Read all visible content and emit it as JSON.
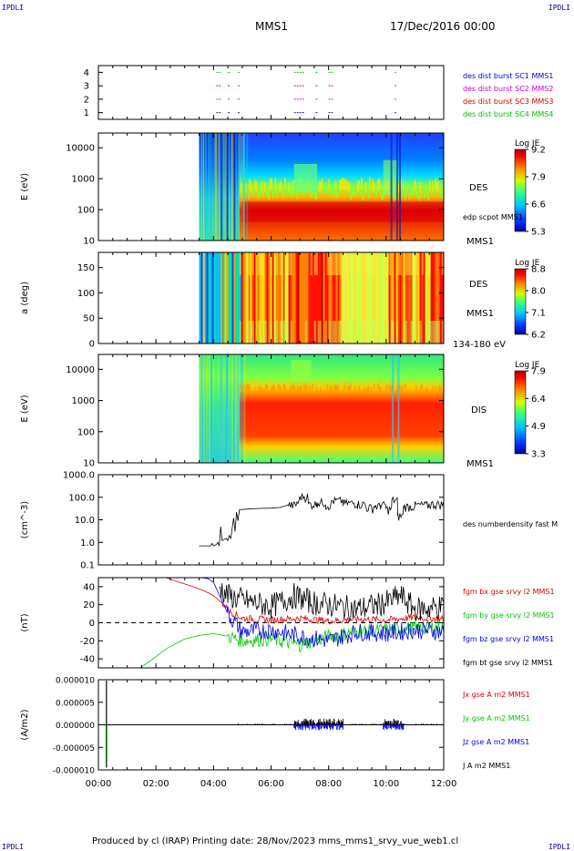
{
  "header": {
    "corner_tl": "IPDLI",
    "corner_tr": "IPDLI",
    "corner_bl": "IPDLI",
    "corner_br": "IPDLI",
    "spacecraft": "MMS1",
    "date": "17/Dec/2016 00:00"
  },
  "footer": {
    "text": "Produced by cl (IRAP)   Printing date: 28/Nov/2023   mms_mms1_srvy_vue_web1.cl"
  },
  "colors": {
    "mms1": "#0000cc",
    "mms2": "#cc00cc",
    "mms3": "#dd0000",
    "mms4": "#00bb00",
    "bx": "#dd0000",
    "by": "#00cc00",
    "bz": "#0000ee",
    "bt": "#000000"
  },
  "chart_data": [
    {
      "type": "scatter",
      "panel": "burst",
      "ylim": [
        0.5,
        4.5
      ],
      "yticks": [
        "1",
        "2",
        "3",
        "4"
      ],
      "legend": [
        "des dist burst SC1 MMS1",
        "des dist burst SC2 MMS2",
        "des dist burst SC3 MMS3",
        "des dist burst SC4 MMS4"
      ],
      "segments_hours": [
        [
          4.1,
          4.25
        ],
        [
          4.5,
          4.6
        ],
        [
          4.85,
          4.95
        ],
        [
          6.8,
          7.15
        ],
        [
          7.55,
          7.65
        ],
        [
          8.0,
          8.15
        ],
        [
          10.3,
          10.35
        ]
      ]
    },
    {
      "type": "heatmap",
      "panel": "des-energy",
      "ylabel": "E (eV)",
      "yscale": "log",
      "ylim": [
        10,
        30000
      ],
      "yticks": [
        "10",
        "100",
        "1000",
        "10000"
      ],
      "label": "DES",
      "sublabel": "edp scpot MMS1",
      "bottom_label": "MMS1",
      "colorbar": {
        "title": "Log JE",
        "ticks": [
          "9.2",
          "7.9",
          "6.6",
          "5.3"
        ],
        "range": [
          5.3,
          9.2
        ]
      }
    },
    {
      "type": "heatmap",
      "panel": "des-pitch",
      "ylabel": "a (deg)",
      "ylim": [
        0,
        180
      ],
      "yticks": [
        "0",
        "50",
        "100",
        "150"
      ],
      "label": "DES",
      "sublabel": "MMS1",
      "bottom_label": "134-180 eV",
      "colorbar": {
        "title": "Log JE",
        "ticks": [
          "8.8",
          "8.0",
          "7.1",
          "6.2"
        ],
        "range": [
          6.2,
          8.8
        ]
      }
    },
    {
      "type": "heatmap",
      "panel": "dis-energy",
      "ylabel": "E (eV)",
      "yscale": "log",
      "ylim": [
        10,
        30000
      ],
      "yticks": [
        "10",
        "100",
        "1000",
        "10000"
      ],
      "label": "DIS",
      "bottom_label": "MMS1",
      "colorbar": {
        "title": "Log JE",
        "ticks": [
          "7.9",
          "6.4",
          "4.9",
          "3.3"
        ],
        "range": [
          3.3,
          7.9
        ]
      }
    },
    {
      "type": "line",
      "panel": "density",
      "ylabel": "(cm^-3)",
      "yscale": "log",
      "ylim": [
        0.1,
        1000
      ],
      "yticks": [
        "0.1",
        "1.0",
        "10.0",
        "100.0",
        "1000.0"
      ],
      "legend": [
        "des numberdensity fast M"
      ],
      "x_hours": [
        3.5,
        3.9,
        3.95,
        4.0,
        4.1,
        4.15,
        4.2,
        4.25,
        4.3,
        4.45,
        4.5,
        4.55,
        4.6,
        4.7,
        4.75,
        4.8,
        4.85,
        4.9,
        5.2,
        5.6,
        6.0,
        6.3,
        6.6,
        6.9,
        7.0,
        7.3,
        7.6,
        7.9,
        8.1,
        8.5,
        9.0,
        9.3,
        9.6,
        9.8,
        10.0,
        10.2,
        10.4,
        10.6,
        11.0,
        11.5,
        12.0
      ],
      "values": [
        0.7,
        0.7,
        0.9,
        0.7,
        0.8,
        1.0,
        0.7,
        5.0,
        1.2,
        1.5,
        1.2,
        2.0,
        1.5,
        12,
        3,
        22,
        9,
        28,
        30,
        32,
        33,
        35,
        45,
        60,
        110,
        50,
        60,
        45,
        70,
        55,
        50,
        35,
        40,
        45,
        30,
        75,
        15,
        40,
        45,
        50,
        48
      ]
    },
    {
      "type": "line",
      "panel": "magnetic-field",
      "ylabel": "(nT)",
      "ylim": [
        -50,
        50
      ],
      "yticks": [
        "-40",
        "-20",
        "0",
        "20",
        "40"
      ],
      "legend": [
        "fgm bx gse srvy l2 MMS1",
        "fgm by gse srvy l2 MMS1",
        "fgm bz gse srvy l2 MMS1",
        "fgm bt gse srvy l2 MMS1"
      ],
      "series": [
        {
          "name": "fgm bx gse srvy l2 MMS1",
          "x": [
            2.35,
            2.8,
            3.3,
            3.7,
            4.0,
            4.3,
            4.6,
            5.0,
            6.0,
            7.0,
            8.0,
            9.0,
            10.0,
            11.0,
            12.0
          ],
          "values": [
            50,
            45,
            40,
            35,
            30,
            22,
            12,
            5,
            3,
            5,
            2,
            4,
            3,
            6,
            4
          ]
        },
        {
          "name": "fgm by gse srvy l2 MMS1",
          "x": [
            1.45,
            1.9,
            2.4,
            3.0,
            3.5,
            4.0,
            4.5,
            5.0,
            6.0,
            7.0,
            8.0,
            9.0,
            10.0,
            11.0,
            12.0
          ],
          "values": [
            -50,
            -40,
            -28,
            -18,
            -14,
            -12,
            -15,
            -20,
            -18,
            -25,
            -15,
            -10,
            -8,
            -6,
            -5
          ]
        },
        {
          "name": "fgm bz gse srvy l2 MMS1",
          "x": [
            3.6,
            3.8,
            4.0,
            4.5,
            5.0,
            6.0,
            7.0,
            8.0,
            9.0,
            10.0,
            11.0,
            12.0
          ],
          "values": [
            50,
            49,
            45,
            10,
            -10,
            -8,
            -15,
            -20,
            -10,
            -12,
            -8,
            -10
          ]
        },
        {
          "name": "fgm bt gse srvy l2 MMS1",
          "x": [
            4.2,
            4.5,
            5.0,
            6.0,
            6.8,
            7.5,
            8.0,
            9.0,
            10.0,
            10.5,
            11.0,
            12.0
          ],
          "values": [
            40,
            30,
            25,
            18,
            30,
            22,
            20,
            15,
            22,
            30,
            15,
            18
          ]
        }
      ]
    },
    {
      "type": "line",
      "panel": "current-density",
      "ylabel": "(A/m2)",
      "ylim": [
        -1e-05,
        1e-05
      ],
      "yticks": [
        "-0.000010",
        "-0.000005",
        "0.000000",
        "0.000005",
        "0.000010"
      ],
      "legend": [
        "Jx gse A m2 MMS1",
        "Jy gse A m2 MMS1",
        "Jz gse A m2 MMS1",
        "J A m2 MMS1"
      ]
    }
  ],
  "xaxis": {
    "xlim": [
      0,
      12
    ],
    "ticks": [
      "00:00",
      "02:00",
      "04:00",
      "06:00",
      "08:00",
      "10:00",
      "12:00"
    ]
  }
}
